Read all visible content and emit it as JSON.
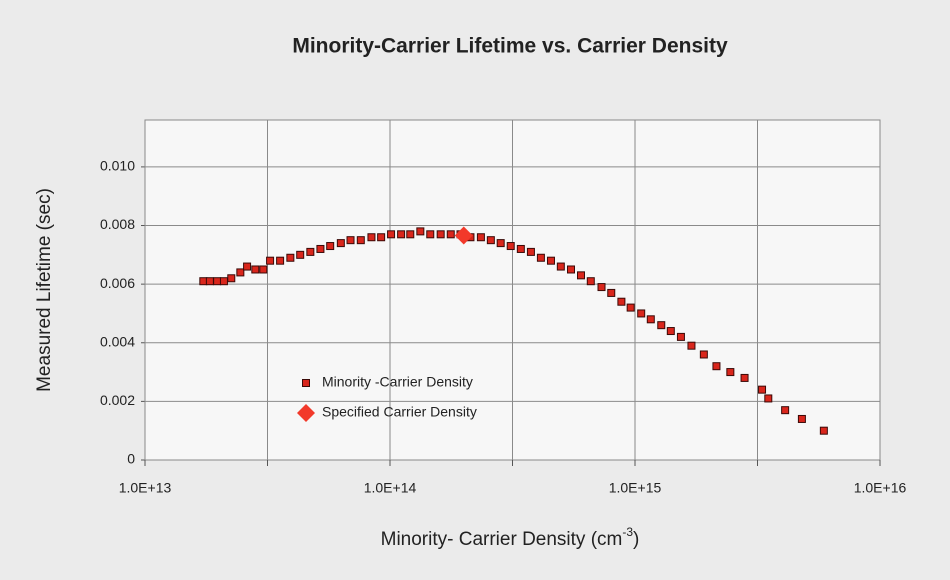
{
  "chart_data": {
    "type": "scatter",
    "title": "Minority-Carrier Lifetime vs. Carrier Density",
    "xlabel": "Minority- Carrier Density (cm",
    "xlabel_sup": "-3",
    "xlabel_end": ")",
    "ylabel": "Measured Lifetime (sec)",
    "xscale": "log",
    "xlim": [
      10000000000000.0,
      1e+16
    ],
    "xticks": [
      {
        "value": 10000000000000.0,
        "label": "1.0E+13"
      },
      {
        "value": 100000000000000.0,
        "label": "1.0E+14"
      },
      {
        "value": 1000000000000000.0,
        "label": "1.0E+15"
      },
      {
        "value": 1e+16,
        "label": "1.0E+16"
      }
    ],
    "xminor": [
      31623000000000.0,
      316230000000000.0,
      3162300000000000.0
    ],
    "ylim": [
      0,
      0.0116
    ],
    "yticks": [
      0,
      0.002,
      0.004,
      0.006,
      0.008,
      {
        "value": 0.01,
        "label": "0.010"
      }
    ],
    "grid": true,
    "legend": "center-left",
    "series": [
      {
        "name": "Minority -Carrier Density",
        "marker": "square",
        "color": "#d9261c",
        "x": [
          17300000000000.0,
          18400000000000.0,
          19700000000000.0,
          21000000000000.0,
          22500000000000.0,
          24500000000000.0,
          26100000000000.0,
          28200000000000.0,
          30400000000000.0,
          32400000000000.0,
          35600000000000.0,
          39200000000000.0,
          43000000000000.0,
          47300000000000.0,
          52000000000000.0,
          57000000000000.0,
          63000000000000.0,
          69000000000000.0,
          76000000000000.0,
          84000000000000.0,
          92000000000000.0,
          101000000000000.0,
          111000000000000.0,
          121000000000000.0,
          133000000000000.0,
          146000000000000.0,
          161000000000000.0,
          177000000000000.0,
          194000000000000.0,
          213000000000000.0,
          235000000000000.0,
          258000000000000.0,
          283000000000000.0,
          311000000000000.0,
          342000000000000.0,
          376000000000000.0,
          413000000000000.0,
          454000000000000.0,
          498000000000000.0,
          548000000000000.0,
          602000000000000.0,
          660000000000000.0,
          730000000000000.0,
          800000000000000.0,
          880000000000000.0,
          960000000000000.0,
          1060000000000000.0,
          1160000000000000.0,
          1280000000000000.0,
          1400000000000000.0,
          1540000000000000.0,
          1700000000000000.0,
          1910000000000000.0,
          2150000000000000.0,
          2450000000000000.0,
          2800000000000000.0,
          3300000000000000.0,
          3500000000000000.0,
          4100000000000000.0,
          4800000000000000.0,
          5900000000000000.0
        ],
        "values": [
          0.0061,
          0.0061,
          0.0061,
          0.0061,
          0.0062,
          0.0064,
          0.0066,
          0.0065,
          0.0065,
          0.0068,
          0.0068,
          0.0069,
          0.007,
          0.0071,
          0.0072,
          0.0073,
          0.0074,
          0.0075,
          0.0075,
          0.0076,
          0.0076,
          0.0077,
          0.0077,
          0.0077,
          0.0078,
          0.0077,
          0.0077,
          0.0077,
          0.0077,
          0.0076,
          0.0076,
          0.0075,
          0.0074,
          0.0073,
          0.0072,
          0.0071,
          0.0069,
          0.0068,
          0.0066,
          0.0065,
          0.0063,
          0.0061,
          0.0059,
          0.0057,
          0.0054,
          0.0052,
          0.005,
          0.0048,
          0.0046,
          0.0044,
          0.0042,
          0.0039,
          0.0036,
          0.0032,
          0.003,
          0.0028,
          0.0024,
          0.0021,
          0.0017,
          0.0014,
          0.001
        ]
      },
      {
        "name": "Specified Carrier Density",
        "marker": "diamond",
        "color": "#f2392a",
        "x": [
          200000000000000.0
        ],
        "values": [
          0.00766
        ]
      }
    ]
  }
}
